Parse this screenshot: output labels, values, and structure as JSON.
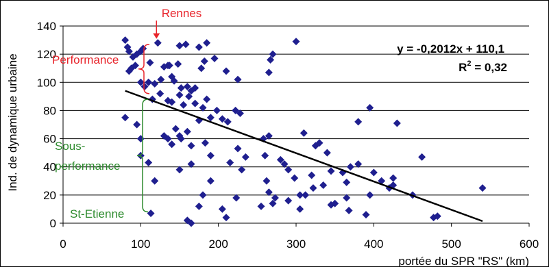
{
  "chart_data": {
    "type": "scatter",
    "xlabel": "portée du SPR \"RS\" (km)",
    "ylabel": "Ind. de dynamique urbaine",
    "xlim": [
      0,
      600
    ],
    "ylim": [
      0,
      140
    ],
    "x_ticks": [
      "0",
      "100",
      "200",
      "300",
      "400",
      "500",
      "600"
    ],
    "y_ticks": [
      "0",
      "20",
      "40",
      "60",
      "80",
      "100",
      "120",
      "140"
    ],
    "grid": "horizontal",
    "point_color": "#1f1f8f",
    "trend_color": "#000000",
    "trendline": {
      "slope": -0.2012,
      "intercept": 110.1,
      "x_start": 80,
      "x_end": 540
    },
    "equation": "y = -0,2012x + 110,1",
    "r2_base": "R",
    "r2_sup": "2",
    "r2_value": " = 0,32",
    "annotations": {
      "rennes": {
        "text": "Rennes",
        "color": "#e8242b",
        "x": 122,
        "y": 128
      },
      "performance": {
        "text": "Performance",
        "color": "#e8242b"
      },
      "sous_line1": {
        "text": "Sous-",
        "color": "#2e8b2e"
      },
      "sous_line2": {
        "text": "performance",
        "color": "#2e8b2e"
      },
      "st_etienne": {
        "text": "St-Etienne",
        "color": "#2e8b2e",
        "x": 113,
        "y": 7
      }
    },
    "points": [
      [
        80,
        130
      ],
      [
        83,
        125
      ],
      [
        85,
        122
      ],
      [
        90,
        118
      ],
      [
        95,
        120
      ],
      [
        100,
        122
      ],
      [
        103,
        124
      ],
      [
        122,
        128
      ],
      [
        137,
        112
      ],
      [
        150,
        126
      ],
      [
        158,
        127
      ],
      [
        175,
        125
      ],
      [
        185,
        128
      ],
      [
        300,
        129
      ],
      [
        270,
        120
      ],
      [
        267,
        116
      ],
      [
        85,
        108
      ],
      [
        88,
        110
      ],
      [
        93,
        112
      ],
      [
        100,
        100
      ],
      [
        105,
        97
      ],
      [
        110,
        100
      ],
      [
        112,
        114
      ],
      [
        118,
        99
      ],
      [
        126,
        102
      ],
      [
        130,
        111
      ],
      [
        135,
        112
      ],
      [
        140,
        104
      ],
      [
        143,
        101
      ],
      [
        148,
        113
      ],
      [
        152,
        96
      ],
      [
        160,
        97
      ],
      [
        165,
        94
      ],
      [
        170,
        96
      ],
      [
        178,
        110
      ],
      [
        182,
        115
      ],
      [
        195,
        117
      ],
      [
        210,
        108
      ],
      [
        225,
        102
      ],
      [
        265,
        107
      ],
      [
        115,
        88
      ],
      [
        125,
        92
      ],
      [
        135,
        87
      ],
      [
        140,
        86
      ],
      [
        150,
        91
      ],
      [
        155,
        84
      ],
      [
        162,
        90
      ],
      [
        170,
        85
      ],
      [
        180,
        82
      ],
      [
        185,
        88
      ],
      [
        190,
        75
      ],
      [
        198,
        80
      ],
      [
        205,
        74
      ],
      [
        212,
        72
      ],
      [
        222,
        80
      ],
      [
        228,
        78
      ],
      [
        80,
        75
      ],
      [
        95,
        70
      ],
      [
        100,
        60
      ],
      [
        100,
        48
      ],
      [
        110,
        43
      ],
      [
        130,
        62
      ],
      [
        135,
        60
      ],
      [
        140,
        56
      ],
      [
        145,
        67
      ],
      [
        150,
        62
      ],
      [
        152,
        60
      ],
      [
        160,
        65
      ],
      [
        165,
        55
      ],
      [
        175,
        73
      ],
      [
        183,
        57
      ],
      [
        190,
        48
      ],
      [
        225,
        53
      ],
      [
        258,
        60
      ],
      [
        260,
        48
      ],
      [
        150,
        38
      ],
      [
        165,
        42
      ],
      [
        190,
        30
      ],
      [
        215,
        43
      ],
      [
        280,
        45
      ],
      [
        285,
        42
      ],
      [
        290,
        38
      ],
      [
        298,
        32
      ],
      [
        320,
        34
      ],
      [
        325,
        55
      ],
      [
        330,
        57
      ],
      [
        340,
        50
      ],
      [
        345,
        37
      ],
      [
        360,
        36
      ],
      [
        370,
        40
      ],
      [
        380,
        42
      ],
      [
        400,
        36
      ],
      [
        410,
        30
      ],
      [
        425,
        32
      ],
      [
        462,
        47
      ],
      [
        430,
        71
      ],
      [
        380,
        72
      ],
      [
        425,
        27
      ],
      [
        395,
        82
      ],
      [
        230,
        38
      ],
      [
        235,
        47
      ],
      [
        262,
        30
      ],
      [
        265,
        22
      ],
      [
        273,
        18
      ],
      [
        305,
        20
      ],
      [
        322,
        25
      ],
      [
        335,
        27
      ],
      [
        365,
        29
      ],
      [
        395,
        20
      ],
      [
        420,
        25
      ],
      [
        450,
        20
      ],
      [
        113,
        7
      ],
      [
        160,
        2
      ],
      [
        165,
        0
      ],
      [
        175,
        12
      ],
      [
        180,
        20
      ],
      [
        205,
        10
      ],
      [
        210,
        4
      ],
      [
        223,
        18
      ],
      [
        255,
        12
      ],
      [
        270,
        14
      ],
      [
        290,
        16
      ],
      [
        305,
        10
      ],
      [
        312,
        20
      ],
      [
        345,
        13
      ],
      [
        350,
        14
      ],
      [
        365,
        18
      ],
      [
        368,
        9
      ],
      [
        390,
        6
      ],
      [
        477,
        4
      ],
      [
        482,
        5
      ],
      [
        540,
        25
      ],
      [
        118,
        30
      ],
      [
        310,
        64
      ],
      [
        265,
        62
      ]
    ]
  }
}
